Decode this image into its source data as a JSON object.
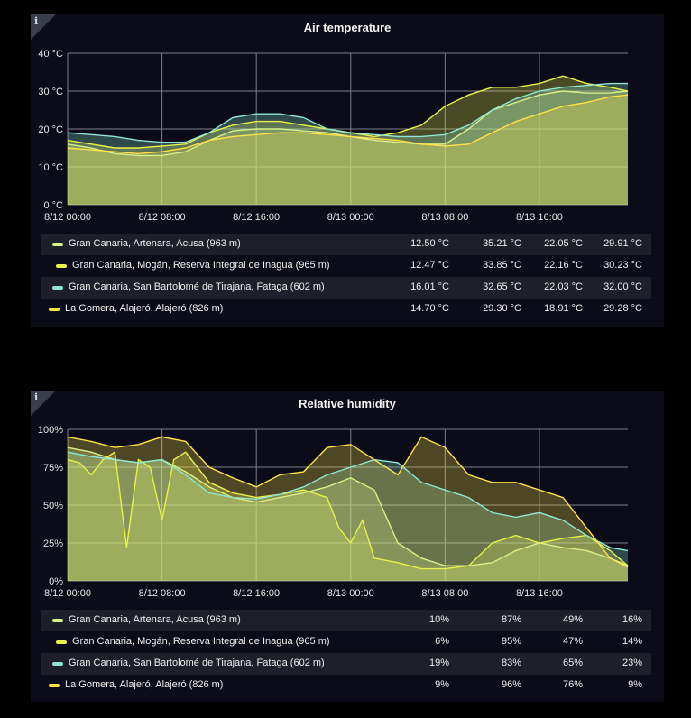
{
  "colors": {
    "acusa": "#d8f08a",
    "inagua": "#e9f24b",
    "fataga": "#8fe6d2",
    "alajero": "#ffe14a"
  },
  "chart_data": [
    {
      "type": "area",
      "title": "Air temperature",
      "x_unit": "hours since 8/12 00:00",
      "xlim": [
        0,
        47.5
      ],
      "ylim": [
        0,
        40
      ],
      "ytick_labels": [
        "0 °C",
        "10 °C",
        "20 °C",
        "30 °C",
        "40 °C"
      ],
      "xtick_labels": [
        "8/12 00:00",
        "8/12 08:00",
        "8/12 16:00",
        "8/13 00:00",
        "8/13 08:00",
        "8/13 16:00"
      ],
      "grid": true,
      "series": [
        {
          "name": "Gran Canaria, Artenara, Acusa (963 m)",
          "color": "#d8f08a",
          "x": [
            0,
            2,
            4,
            6,
            8,
            10,
            12,
            14,
            16,
            18,
            20,
            22,
            24,
            26,
            28,
            30,
            32,
            34,
            36,
            38,
            40,
            42,
            44,
            46,
            47.5
          ],
          "y": [
            16,
            15,
            13.5,
            13,
            13,
            14,
            17,
            19.5,
            20,
            20,
            19.5,
            19,
            18,
            17,
            16.5,
            16,
            16,
            20,
            25,
            27,
            29,
            30,
            29.5,
            29.5,
            30
          ],
          "stats": [
            "12.50 °C",
            "35.21 °C",
            "22.05 °C",
            "29.91 °C"
          ]
        },
        {
          "name": "Gran Canaria, Mogán, Reserva Integral de Inagua (965 m)",
          "color": "#e9f24b",
          "x": [
            0,
            2,
            4,
            6,
            8,
            10,
            12,
            14,
            16,
            18,
            20,
            22,
            24,
            26,
            28,
            30,
            32,
            34,
            36,
            38,
            40,
            42,
            44,
            46,
            47.5
          ],
          "y": [
            17,
            16,
            15,
            15,
            15.5,
            16,
            19,
            21,
            22,
            22,
            21,
            20,
            19,
            18,
            19,
            21,
            26,
            29,
            31,
            31,
            32,
            34,
            32,
            31,
            30
          ],
          "stats": [
            "12.47 °C",
            "33.85 °C",
            "22.16 °C",
            "30.23 °C"
          ]
        },
        {
          "name": "Gran Canaria, San Bartolomé de Tirajana, Fataga (602 m)",
          "color": "#8fe6d2",
          "x": [
            0,
            2,
            4,
            6,
            8,
            10,
            12,
            14,
            16,
            18,
            20,
            22,
            24,
            26,
            28,
            30,
            32,
            34,
            36,
            38,
            40,
            42,
            44,
            46,
            47.5
          ],
          "y": [
            19,
            18.5,
            18,
            17,
            16.5,
            16.5,
            19,
            23,
            24,
            24,
            23,
            20,
            19,
            18.5,
            18,
            18,
            18.5,
            21,
            25,
            28,
            30,
            31,
            31.5,
            32,
            32
          ],
          "stats": [
            "16.01 °C",
            "32.65 °C",
            "22.03 °C",
            "32.00 °C"
          ]
        },
        {
          "name": "La Gomera, Alajeró, Alajeró (826 m)",
          "color": "#ffe14a",
          "x": [
            0,
            2,
            4,
            6,
            8,
            10,
            12,
            14,
            16,
            18,
            20,
            22,
            24,
            26,
            28,
            30,
            32,
            34,
            36,
            38,
            40,
            42,
            44,
            46,
            47.5
          ],
          "y": [
            15,
            14.5,
            14,
            13.5,
            14,
            15,
            17,
            18,
            18.5,
            19,
            19,
            18.5,
            18,
            17.5,
            17,
            16,
            15.5,
            16,
            19,
            22,
            24,
            26,
            27,
            28.5,
            29
          ],
          "stats": [
            "14.70 °C",
            "29.30 °C",
            "18.91 °C",
            "29.28 °C"
          ]
        }
      ]
    },
    {
      "type": "area",
      "title": "Relative humidity",
      "x_unit": "hours since 8/12 00:00",
      "xlim": [
        0,
        47.5
      ],
      "ylim": [
        0,
        100
      ],
      "ytick_labels": [
        "0%",
        "25%",
        "50%",
        "75%",
        "100%"
      ],
      "xtick_labels": [
        "8/12 00:00",
        "8/12 08:00",
        "8/12 16:00",
        "8/13 00:00",
        "8/13 08:00",
        "8/13 16:00"
      ],
      "grid": true,
      "series": [
        {
          "name": "Gran Canaria, Artenara, Acusa (963 m)",
          "color": "#d8f08a",
          "x": [
            0,
            2,
            4,
            6,
            8,
            10,
            12,
            14,
            16,
            18,
            20,
            22,
            24,
            26,
            28,
            30,
            32,
            34,
            36,
            38,
            40,
            42,
            44,
            46,
            47.5
          ],
          "y": [
            88,
            85,
            80,
            78,
            80,
            72,
            62,
            55,
            52,
            55,
            58,
            62,
            68,
            60,
            25,
            15,
            10,
            10,
            12,
            20,
            25,
            22,
            20,
            15,
            10
          ],
          "stats": [
            "10%",
            "87%",
            "49%",
            "16%"
          ]
        },
        {
          "name": "Gran Canaria, Mogán, Reserva Integral de Inagua (965 m)",
          "color": "#e9f24b",
          "x": [
            0,
            1,
            2,
            3,
            4,
            5,
            6,
            7,
            8,
            9,
            10,
            12,
            14,
            16,
            18,
            20,
            22,
            23,
            24,
            25,
            26,
            28,
            30,
            32,
            34,
            36,
            38,
            40,
            42,
            44,
            46,
            47.5
          ],
          "y": [
            80,
            78,
            70,
            80,
            85,
            22,
            80,
            75,
            40,
            80,
            85,
            65,
            58,
            55,
            57,
            60,
            55,
            35,
            25,
            40,
            15,
            12,
            8,
            8,
            10,
            25,
            30,
            25,
            28,
            30,
            20,
            10
          ],
          "stats": [
            "6%",
            "95%",
            "47%",
            "14%"
          ]
        },
        {
          "name": "Gran Canaria, San Bartolomé de Tirajana, Fataga (602 m)",
          "color": "#8fe6d2",
          "x": [
            0,
            2,
            4,
            6,
            8,
            10,
            12,
            14,
            16,
            18,
            20,
            22,
            24,
            26,
            28,
            30,
            32,
            34,
            36,
            38,
            40,
            42,
            44,
            46,
            47.5
          ],
          "y": [
            85,
            82,
            80,
            78,
            80,
            70,
            58,
            55,
            54,
            57,
            62,
            70,
            75,
            80,
            78,
            65,
            60,
            55,
            45,
            42,
            45,
            40,
            30,
            22,
            20
          ],
          "stats": [
            "19%",
            "83%",
            "65%",
            "23%"
          ]
        },
        {
          "name": "La Gomera, Alajeró, Alajeró (826 m)",
          "color": "#ffe14a",
          "x": [
            0,
            2,
            4,
            6,
            8,
            10,
            12,
            14,
            16,
            18,
            20,
            22,
            24,
            26,
            28,
            30,
            32,
            34,
            36,
            38,
            40,
            42,
            44,
            46,
            47.5
          ],
          "y": [
            95,
            92,
            88,
            90,
            95,
            92,
            75,
            68,
            62,
            70,
            72,
            88,
            90,
            80,
            70,
            95,
            88,
            70,
            65,
            65,
            60,
            55,
            35,
            15,
            9
          ],
          "stats": [
            "9%",
            "96%",
            "76%",
            "9%"
          ]
        }
      ]
    }
  ]
}
